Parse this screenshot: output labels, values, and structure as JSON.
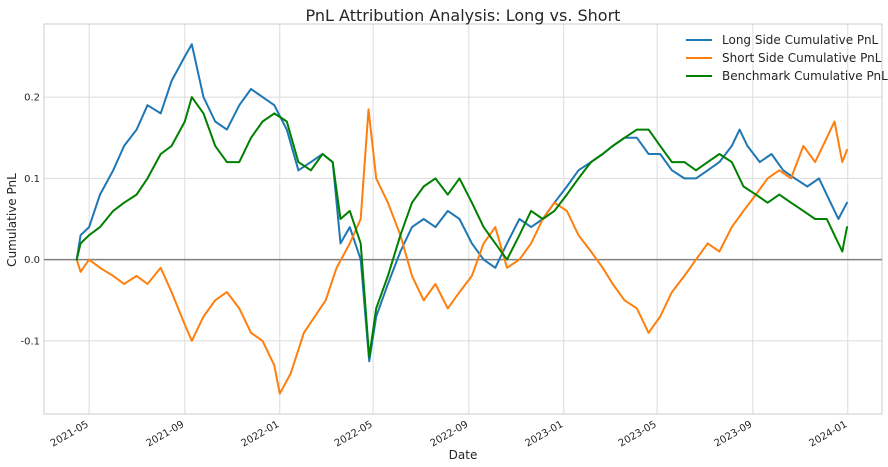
{
  "chart_data": {
    "type": "line",
    "title": "PnL Attribution Analysis: Long vs. Short",
    "xlabel": "Date",
    "ylabel": "Cumulative PnL",
    "xlim": [
      "2021-03-04",
      "2024-02-14"
    ],
    "ylim": [
      -0.19,
      0.29
    ],
    "x_ticks": [
      "2021-05",
      "2021-09",
      "2022-01",
      "2022-05",
      "2022-09",
      "2023-01",
      "2023-05",
      "2023-09",
      "2024-01"
    ],
    "x_tick_dates": [
      "2021-05-01",
      "2021-09-01",
      "2022-01-01",
      "2022-05-01",
      "2022-09-01",
      "2023-01-01",
      "2023-05-01",
      "2023-09-01",
      "2024-01-01"
    ],
    "y_ticks": [
      "-0.1",
      "0.0",
      "0.1",
      "0.2"
    ],
    "y_tick_values": [
      -0.1,
      0.0,
      0.1,
      0.2
    ],
    "grid": true,
    "legend_position": "top-right",
    "reference_line_y": 0.0,
    "series": [
      {
        "name": "Long Side Cumulative PnL",
        "color": "#1f77b4",
        "points": [
          [
            "2021-04-15",
            0.0
          ],
          [
            "2021-04-20",
            0.03
          ],
          [
            "2021-05-01",
            0.04
          ],
          [
            "2021-05-15",
            0.08
          ],
          [
            "2021-06-01",
            0.11
          ],
          [
            "2021-06-15",
            0.14
          ],
          [
            "2021-07-01",
            0.16
          ],
          [
            "2021-07-15",
            0.19
          ],
          [
            "2021-08-01",
            0.18
          ],
          [
            "2021-08-15",
            0.22
          ],
          [
            "2021-09-01",
            0.25
          ],
          [
            "2021-09-10",
            0.265
          ],
          [
            "2021-09-25",
            0.2
          ],
          [
            "2021-10-10",
            0.17
          ],
          [
            "2021-10-25",
            0.16
          ],
          [
            "2021-11-10",
            0.19
          ],
          [
            "2021-11-25",
            0.21
          ],
          [
            "2021-12-10",
            0.2
          ],
          [
            "2021-12-25",
            0.19
          ],
          [
            "2022-01-10",
            0.16
          ],
          [
            "2022-01-25",
            0.11
          ],
          [
            "2022-02-10",
            0.12
          ],
          [
            "2022-02-25",
            0.13
          ],
          [
            "2022-03-10",
            0.12
          ],
          [
            "2022-03-20",
            0.02
          ],
          [
            "2022-04-01",
            0.04
          ],
          [
            "2022-04-15",
            0.0
          ],
          [
            "2022-04-26",
            -0.125
          ],
          [
            "2022-05-05",
            -0.07
          ],
          [
            "2022-05-20",
            -0.03
          ],
          [
            "2022-06-05",
            0.01
          ],
          [
            "2022-06-20",
            0.04
          ],
          [
            "2022-07-05",
            0.05
          ],
          [
            "2022-07-20",
            0.04
          ],
          [
            "2022-08-05",
            0.06
          ],
          [
            "2022-08-20",
            0.05
          ],
          [
            "2022-09-05",
            0.02
          ],
          [
            "2022-09-20",
            0.0
          ],
          [
            "2022-10-05",
            -0.01
          ],
          [
            "2022-10-20",
            0.02
          ],
          [
            "2022-11-05",
            0.05
          ],
          [
            "2022-11-20",
            0.04
          ],
          [
            "2022-12-05",
            0.05
          ],
          [
            "2022-12-20",
            0.07
          ],
          [
            "2023-01-05",
            0.09
          ],
          [
            "2023-01-20",
            0.11
          ],
          [
            "2023-02-05",
            0.12
          ],
          [
            "2023-02-20",
            0.13
          ],
          [
            "2023-03-05",
            0.14
          ],
          [
            "2023-03-20",
            0.15
          ],
          [
            "2023-04-05",
            0.15
          ],
          [
            "2023-04-20",
            0.13
          ],
          [
            "2023-05-05",
            0.13
          ],
          [
            "2023-05-20",
            0.11
          ],
          [
            "2023-06-05",
            0.1
          ],
          [
            "2023-06-20",
            0.1
          ],
          [
            "2023-07-05",
            0.11
          ],
          [
            "2023-07-20",
            0.12
          ],
          [
            "2023-08-05",
            0.14
          ],
          [
            "2023-08-15",
            0.16
          ],
          [
            "2023-08-25",
            0.14
          ],
          [
            "2023-09-10",
            0.12
          ],
          [
            "2023-09-25",
            0.13
          ],
          [
            "2023-10-10",
            0.11
          ],
          [
            "2023-10-25",
            0.1
          ],
          [
            "2023-11-10",
            0.09
          ],
          [
            "2023-11-25",
            0.1
          ],
          [
            "2023-12-10",
            0.07
          ],
          [
            "2023-12-20",
            0.05
          ],
          [
            "2023-12-31",
            0.07
          ]
        ]
      },
      {
        "name": "Short Side Cumulative PnL",
        "color": "#ff7f0e",
        "points": [
          [
            "2021-04-15",
            0.0
          ],
          [
            "2021-04-20",
            -0.015
          ],
          [
            "2021-05-01",
            0.0
          ],
          [
            "2021-05-15",
            -0.01
          ],
          [
            "2021-06-01",
            -0.02
          ],
          [
            "2021-06-15",
            -0.03
          ],
          [
            "2021-07-01",
            -0.02
          ],
          [
            "2021-07-15",
            -0.03
          ],
          [
            "2021-08-01",
            -0.01
          ],
          [
            "2021-08-15",
            -0.04
          ],
          [
            "2021-09-01",
            -0.08
          ],
          [
            "2021-09-10",
            -0.1
          ],
          [
            "2021-09-25",
            -0.07
          ],
          [
            "2021-10-10",
            -0.05
          ],
          [
            "2021-10-25",
            -0.04
          ],
          [
            "2021-11-10",
            -0.06
          ],
          [
            "2021-11-25",
            -0.09
          ],
          [
            "2021-12-10",
            -0.1
          ],
          [
            "2021-12-25",
            -0.13
          ],
          [
            "2022-01-01",
            -0.165
          ],
          [
            "2022-01-15",
            -0.14
          ],
          [
            "2022-02-01",
            -0.09
          ],
          [
            "2022-02-15",
            -0.07
          ],
          [
            "2022-03-01",
            -0.05
          ],
          [
            "2022-03-15",
            -0.01
          ],
          [
            "2022-04-01",
            0.02
          ],
          [
            "2022-04-15",
            0.05
          ],
          [
            "2022-04-25",
            0.185
          ],
          [
            "2022-05-05",
            0.1
          ],
          [
            "2022-05-20",
            0.07
          ],
          [
            "2022-06-05",
            0.03
          ],
          [
            "2022-06-20",
            -0.02
          ],
          [
            "2022-07-05",
            -0.05
          ],
          [
            "2022-07-20",
            -0.03
          ],
          [
            "2022-08-05",
            -0.06
          ],
          [
            "2022-08-20",
            -0.04
          ],
          [
            "2022-09-05",
            -0.02
          ],
          [
            "2022-09-20",
            0.02
          ],
          [
            "2022-10-05",
            0.04
          ],
          [
            "2022-10-20",
            -0.01
          ],
          [
            "2022-11-05",
            0.0
          ],
          [
            "2022-11-20",
            0.02
          ],
          [
            "2022-12-05",
            0.05
          ],
          [
            "2022-12-20",
            0.07
          ],
          [
            "2023-01-05",
            0.06
          ],
          [
            "2023-01-20",
            0.03
          ],
          [
            "2023-02-05",
            0.01
          ],
          [
            "2023-02-20",
            -0.01
          ],
          [
            "2023-03-05",
            -0.03
          ],
          [
            "2023-03-20",
            -0.05
          ],
          [
            "2023-04-05",
            -0.06
          ],
          [
            "2023-04-20",
            -0.09
          ],
          [
            "2023-05-05",
            -0.07
          ],
          [
            "2023-05-20",
            -0.04
          ],
          [
            "2023-06-05",
            -0.02
          ],
          [
            "2023-06-20",
            0.0
          ],
          [
            "2023-07-05",
            0.02
          ],
          [
            "2023-07-20",
            0.01
          ],
          [
            "2023-08-05",
            0.04
          ],
          [
            "2023-08-20",
            0.06
          ],
          [
            "2023-09-05",
            0.08
          ],
          [
            "2023-09-20",
            0.1
          ],
          [
            "2023-10-05",
            0.11
          ],
          [
            "2023-10-20",
            0.1
          ],
          [
            "2023-11-05",
            0.14
          ],
          [
            "2023-11-20",
            0.12
          ],
          [
            "2023-12-05",
            0.15
          ],
          [
            "2023-12-15",
            0.17
          ],
          [
            "2023-12-25",
            0.12
          ],
          [
            "2023-12-31",
            0.135
          ]
        ]
      },
      {
        "name": "Benchmark Cumulative PnL",
        "color": "#008000",
        "points": [
          [
            "2021-04-15",
            0.0
          ],
          [
            "2021-04-20",
            0.02
          ],
          [
            "2021-05-01",
            0.03
          ],
          [
            "2021-05-15",
            0.04
          ],
          [
            "2021-06-01",
            0.06
          ],
          [
            "2021-06-15",
            0.07
          ],
          [
            "2021-07-01",
            0.08
          ],
          [
            "2021-07-15",
            0.1
          ],
          [
            "2021-08-01",
            0.13
          ],
          [
            "2021-08-15",
            0.14
          ],
          [
            "2021-09-01",
            0.17
          ],
          [
            "2021-09-10",
            0.2
          ],
          [
            "2021-09-25",
            0.18
          ],
          [
            "2021-10-10",
            0.14
          ],
          [
            "2021-10-25",
            0.12
          ],
          [
            "2021-11-10",
            0.12
          ],
          [
            "2021-11-25",
            0.15
          ],
          [
            "2021-12-10",
            0.17
          ],
          [
            "2021-12-25",
            0.18
          ],
          [
            "2022-01-10",
            0.17
          ],
          [
            "2022-01-25",
            0.12
          ],
          [
            "2022-02-10",
            0.11
          ],
          [
            "2022-02-25",
            0.13
          ],
          [
            "2022-03-10",
            0.12
          ],
          [
            "2022-03-20",
            0.05
          ],
          [
            "2022-04-01",
            0.06
          ],
          [
            "2022-04-15",
            0.02
          ],
          [
            "2022-04-26",
            -0.12
          ],
          [
            "2022-05-05",
            -0.06
          ],
          [
            "2022-05-20",
            -0.02
          ],
          [
            "2022-06-05",
            0.03
          ],
          [
            "2022-06-20",
            0.07
          ],
          [
            "2022-07-05",
            0.09
          ],
          [
            "2022-07-20",
            0.1
          ],
          [
            "2022-08-05",
            0.08
          ],
          [
            "2022-08-20",
            0.1
          ],
          [
            "2022-09-05",
            0.07
          ],
          [
            "2022-09-20",
            0.04
          ],
          [
            "2022-10-05",
            0.02
          ],
          [
            "2022-10-20",
            0.0
          ],
          [
            "2022-11-05",
            0.03
          ],
          [
            "2022-11-20",
            0.06
          ],
          [
            "2022-12-05",
            0.05
          ],
          [
            "2022-12-20",
            0.06
          ],
          [
            "2023-01-05",
            0.08
          ],
          [
            "2023-01-20",
            0.1
          ],
          [
            "2023-02-05",
            0.12
          ],
          [
            "2023-02-20",
            0.13
          ],
          [
            "2023-03-05",
            0.14
          ],
          [
            "2023-03-20",
            0.15
          ],
          [
            "2023-04-05",
            0.16
          ],
          [
            "2023-04-20",
            0.16
          ],
          [
            "2023-05-05",
            0.14
          ],
          [
            "2023-05-20",
            0.12
          ],
          [
            "2023-06-05",
            0.12
          ],
          [
            "2023-06-20",
            0.11
          ],
          [
            "2023-07-05",
            0.12
          ],
          [
            "2023-07-20",
            0.13
          ],
          [
            "2023-08-05",
            0.12
          ],
          [
            "2023-08-20",
            0.09
          ],
          [
            "2023-09-05",
            0.08
          ],
          [
            "2023-09-20",
            0.07
          ],
          [
            "2023-10-05",
            0.08
          ],
          [
            "2023-10-20",
            0.07
          ],
          [
            "2023-11-05",
            0.06
          ],
          [
            "2023-11-20",
            0.05
          ],
          [
            "2023-12-05",
            0.05
          ],
          [
            "2023-12-15",
            0.03
          ],
          [
            "2023-12-25",
            0.01
          ],
          [
            "2023-12-31",
            0.04
          ]
        ]
      }
    ]
  }
}
